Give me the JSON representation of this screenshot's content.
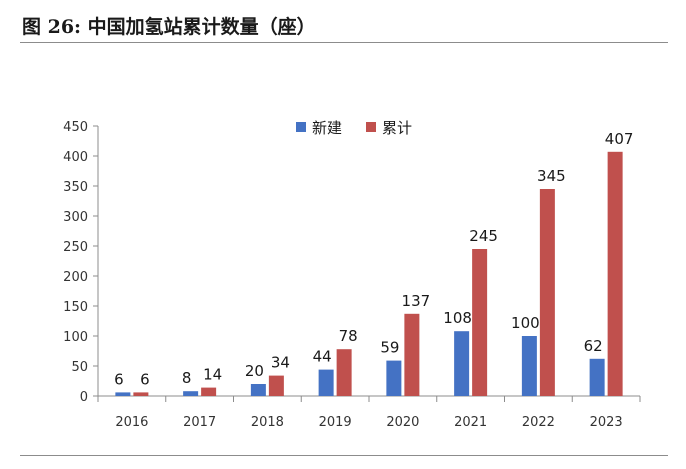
{
  "figure_title": "图 26: 中国加氢站累计数量（座）",
  "colors": {
    "new": "#4472c4",
    "cumulative": "#c0504d",
    "axis": "#8c8c8c"
  },
  "chart_data": {
    "type": "bar",
    "title": "",
    "xlabel": "",
    "ylabel": "",
    "categories": [
      "2016",
      "2017",
      "2018",
      "2019",
      "2020",
      "2021",
      "2022",
      "2023"
    ],
    "series": [
      {
        "name": "新建",
        "values": [
          6,
          8,
          20,
          44,
          59,
          108,
          100,
          62
        ]
      },
      {
        "name": "累计",
        "values": [
          6,
          14,
          34,
          78,
          137,
          245,
          345,
          407
        ]
      }
    ],
    "ylim": [
      0,
      450
    ],
    "yticks": [
      0,
      50,
      100,
      150,
      200,
      250,
      300,
      350,
      400,
      450
    ],
    "grid": false,
    "legend": "top-center",
    "data_labels": true
  }
}
